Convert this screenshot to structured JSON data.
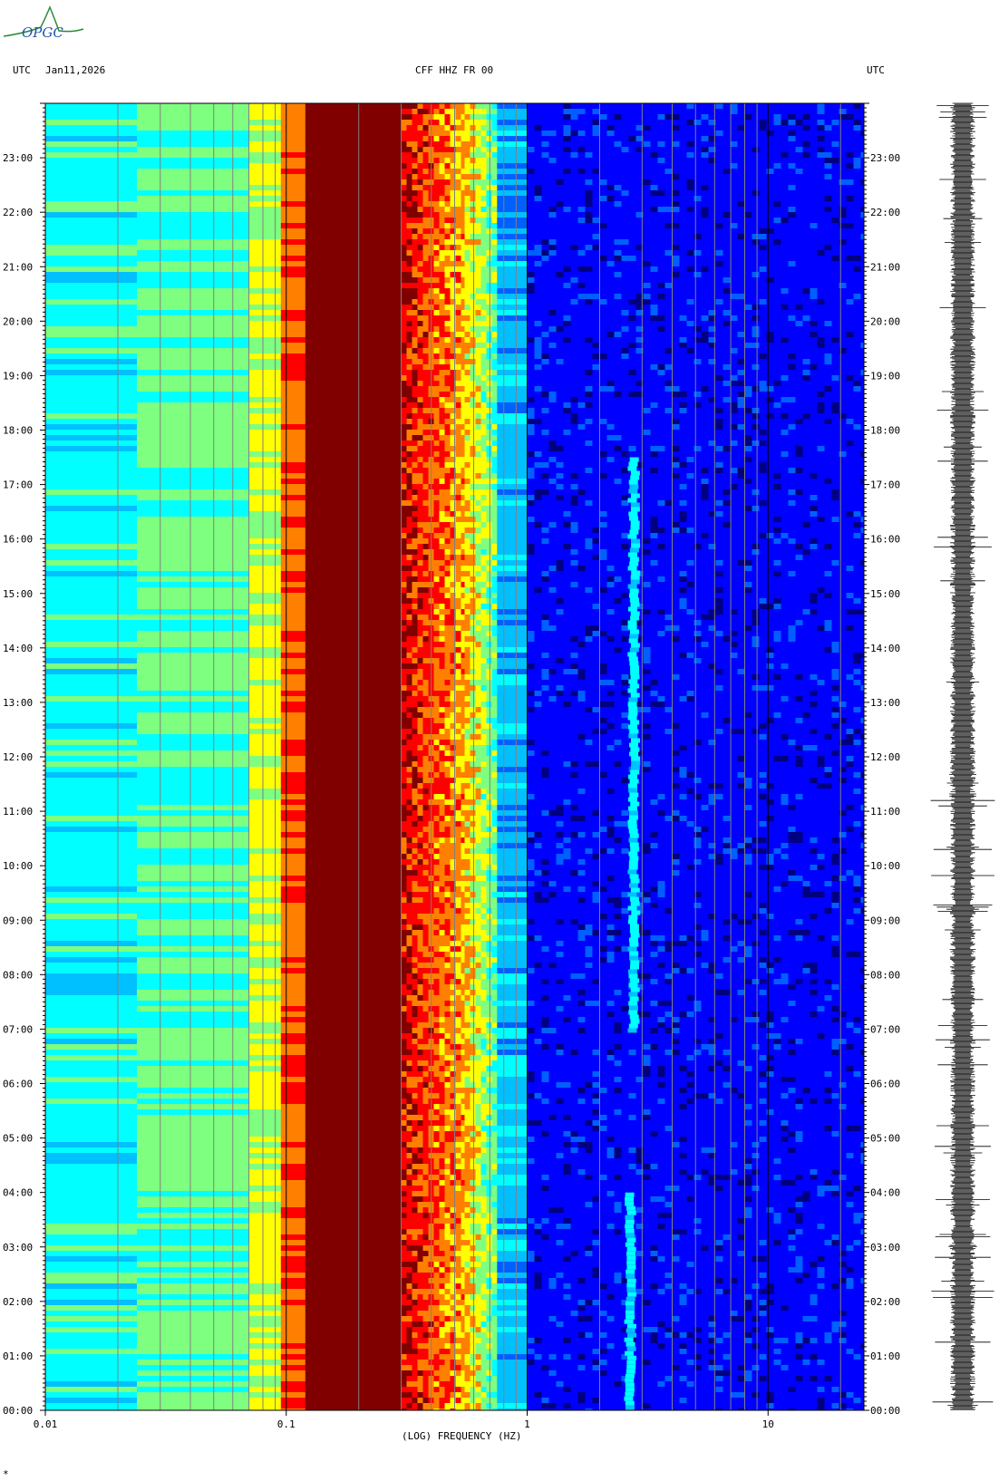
{
  "header": {
    "left_timezone": "UTC",
    "date": "Jan11,2026",
    "station": "CFF HHZ FR 00",
    "right_timezone": "UTC"
  },
  "logo": {
    "text": "OPGC",
    "color": "#2a8a3a"
  },
  "footer": {
    "mark": "*"
  },
  "colors": {
    "frame": "#000000",
    "gridline": "#808080",
    "colormap": [
      "#000080",
      "#0000ff",
      "#0060ff",
      "#00c0ff",
      "#00ffff",
      "#7fff7f",
      "#ffff00",
      "#ff8000",
      "#ff0000",
      "#800000"
    ]
  },
  "chart_data": {
    "type": "heatmap",
    "title": "CFF HHZ FR 00",
    "xlabel": "(LOG) FREQUENCY (HZ)",
    "ylabel": "UTC",
    "x_scale": "log",
    "xlim": [
      0.01,
      25
    ],
    "x_ticks": [
      {
        "value": 0.01,
        "label": "0.01"
      },
      {
        "value": 0.1,
        "label": "0.1"
      },
      {
        "value": 1,
        "label": "1"
      },
      {
        "value": 10,
        "label": "10"
      }
    ],
    "ylim_hours": [
      0,
      24
    ],
    "y_ticks": [
      "00:00",
      "01:00",
      "02:00",
      "03:00",
      "04:00",
      "05:00",
      "06:00",
      "07:00",
      "08:00",
      "09:00",
      "10:00",
      "11:00",
      "12:00",
      "13:00",
      "14:00",
      "15:00",
      "16:00",
      "17:00",
      "18:00",
      "19:00",
      "20:00",
      "21:00",
      "22:00",
      "23:00"
    ],
    "bands": [
      {
        "f_min": 0.01,
        "f_max": 0.024,
        "level": 0.45
      },
      {
        "f_min": 0.024,
        "f_max": 0.07,
        "level": 0.52
      },
      {
        "f_min": 0.07,
        "f_max": 0.095,
        "level": 0.62
      },
      {
        "f_min": 0.095,
        "f_max": 0.12,
        "level": 0.78
      },
      {
        "f_min": 0.12,
        "f_max": 0.3,
        "level": 1.0
      },
      {
        "f_min": 0.3,
        "f_max": 0.55,
        "level": 0.88
      },
      {
        "f_min": 0.55,
        "f_max": 0.75,
        "level": 0.68
      },
      {
        "f_min": 0.75,
        "f_max": 1.0,
        "level": 0.35
      },
      {
        "f_min": 1.0,
        "f_max": 25,
        "level": 0.15
      }
    ],
    "features": [
      {
        "name": "microseism-tremor",
        "f_center": 2.8,
        "t_start_h": 7.0,
        "t_end_h": 17.5
      },
      {
        "name": "early-bursts",
        "f_center": 2.7,
        "t_start_h": 0.0,
        "t_end_h": 4.0
      }
    ],
    "grid": true,
    "seismogram_trace": true
  }
}
